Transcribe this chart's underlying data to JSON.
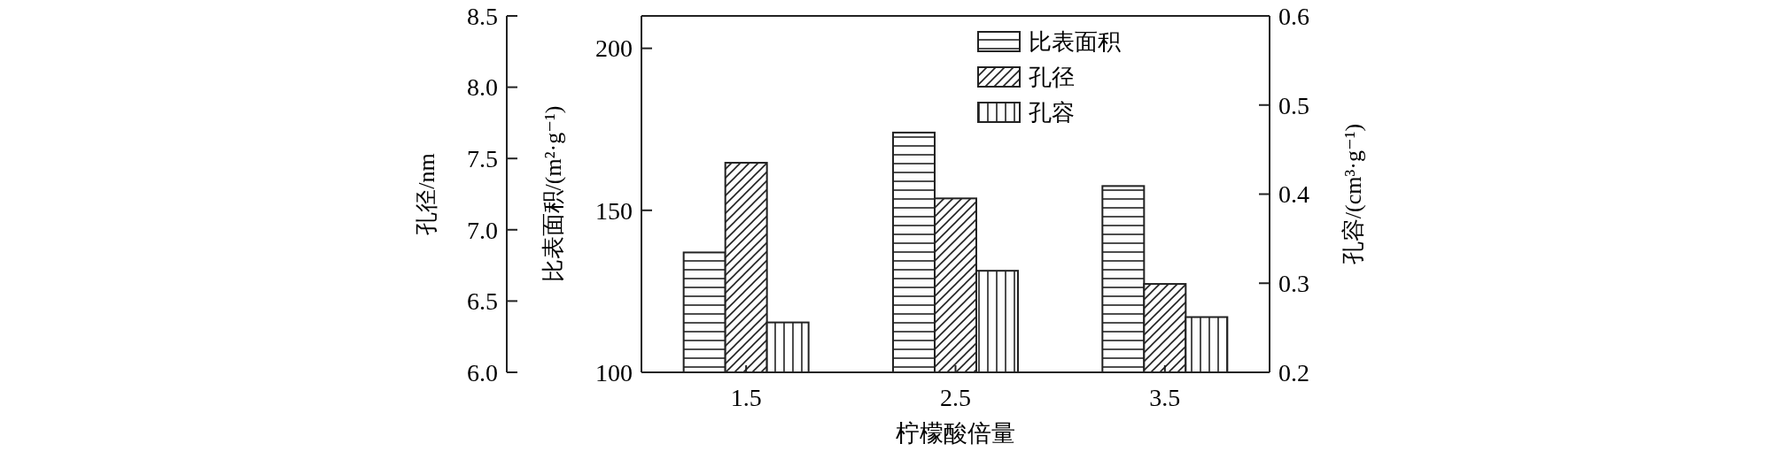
{
  "chart_data": {
    "type": "bar",
    "xlabel": "柠檬酸倍量",
    "ylabel": "比表面积/(m²·g⁻¹)",
    "y2label": "孔容/(cm³·g⁻¹)",
    "y3label": "孔径/nm",
    "categories": [
      "1.5",
      "2.5",
      "3.5"
    ],
    "series": [
      {
        "name": "比表面积",
        "color": "#222222",
        "values": [
          137,
          174,
          157.5
        ]
      },
      {
        "name": "孔径",
        "color": "#222222",
        "axis": "y3",
        "values": [
          7.47,
          7.22,
          6.62
        ]
      },
      {
        "name": "孔容",
        "color": "#222222",
        "axis": "y2",
        "values": [
          0.256,
          0.314,
          0.262
        ]
      }
    ],
    "ylim": [
      100,
      210
    ],
    "yticks": [
      100,
      150,
      200
    ],
    "y2lim": [
      0.2,
      0.6
    ],
    "y2ticks": [
      0.2,
      0.3,
      0.4,
      0.5,
      0.6
    ],
    "y3lim": [
      6.0,
      8.5
    ],
    "y3ticks": [
      {
        "value": 6,
        "label": "6.0"
      },
      {
        "value": 6.5,
        "label": "6.5"
      },
      {
        "value": 7,
        "label": "7.0"
      },
      {
        "value": 7.5,
        "label": "7.5"
      },
      {
        "value": 8,
        "label": "8.0"
      },
      {
        "value": 8.5,
        "label": "8.5"
      }
    ],
    "legend": "top right"
  }
}
